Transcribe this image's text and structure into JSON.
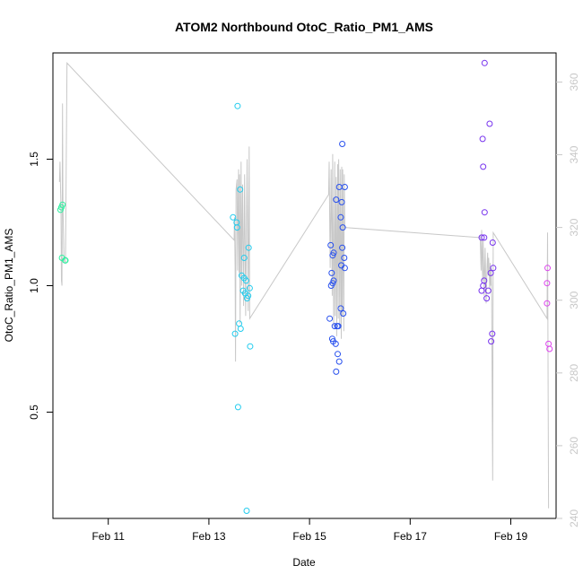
{
  "chart_data": {
    "type": "scatter",
    "title": "ATOM2 Northbound OtoC_Ratio_PM1_AMS",
    "xlabel": "Date",
    "ylabel": "OtoC_Ratio_PM1_AMS",
    "x_ticks": [
      "Feb 11",
      "Feb 13",
      "Feb 15",
      "Feb 17",
      "Feb 19"
    ],
    "x_tick_days": [
      11,
      13,
      15,
      17,
      19
    ],
    "xlim_days": [
      9.9,
      19.9
    ],
    "y_ticks": [
      0.5,
      1.0,
      1.5
    ],
    "ylim": [
      0.08,
      1.92
    ],
    "y2_ticks": [
      240,
      260,
      280,
      300,
      320,
      340,
      360
    ],
    "y2lim": [
      240,
      368
    ],
    "grid": false,
    "legend": "none",
    "line_color": "#c8c8c8",
    "point_series": [
      {
        "color": "#2ef0a0",
        "points": [
          [
            10.05,
            1.3
          ],
          [
            10.07,
            1.31
          ],
          [
            10.09,
            1.32
          ],
          [
            10.08,
            1.11
          ],
          [
            10.15,
            1.1
          ],
          [
            10.14,
            1.1
          ]
        ]
      },
      {
        "color": "#22ccee",
        "points": [
          [
            13.57,
            1.71
          ],
          [
            13.48,
            1.27
          ],
          [
            13.55,
            1.25
          ],
          [
            13.56,
            1.23
          ],
          [
            13.62,
            1.38
          ],
          [
            13.7,
            1.11
          ],
          [
            13.79,
            1.15
          ],
          [
            13.65,
            1.04
          ],
          [
            13.7,
            1.03
          ],
          [
            13.74,
            1.02
          ],
          [
            13.81,
            0.99
          ],
          [
            13.68,
            0.98
          ],
          [
            13.72,
            0.97
          ],
          [
            13.78,
            0.96
          ],
          [
            13.76,
            0.95
          ],
          [
            13.6,
            0.85
          ],
          [
            13.63,
            0.83
          ],
          [
            13.52,
            0.81
          ],
          [
            13.82,
            0.76
          ],
          [
            13.58,
            0.52
          ],
          [
            13.75,
            0.11
          ]
        ]
      },
      {
        "color": "#2850ee",
        "points": [
          [
            15.65,
            1.56
          ],
          [
            15.59,
            1.39
          ],
          [
            15.7,
            1.39
          ],
          [
            15.53,
            1.34
          ],
          [
            15.64,
            1.33
          ],
          [
            15.62,
            1.27
          ],
          [
            15.66,
            1.23
          ],
          [
            15.42,
            1.16
          ],
          [
            15.65,
            1.15
          ],
          [
            15.48,
            1.13
          ],
          [
            15.46,
            1.12
          ],
          [
            15.69,
            1.11
          ],
          [
            15.63,
            1.08
          ],
          [
            15.7,
            1.07
          ],
          [
            15.44,
            1.05
          ],
          [
            15.48,
            1.02
          ],
          [
            15.46,
            1.01
          ],
          [
            15.43,
            1.0
          ],
          [
            15.62,
            0.91
          ],
          [
            15.67,
            0.89
          ],
          [
            15.4,
            0.87
          ],
          [
            15.5,
            0.84
          ],
          [
            15.55,
            0.84
          ],
          [
            15.57,
            0.84
          ],
          [
            15.45,
            0.79
          ],
          [
            15.47,
            0.78
          ],
          [
            15.52,
            0.77
          ],
          [
            15.56,
            0.73
          ],
          [
            15.59,
            0.7
          ],
          [
            15.53,
            0.66
          ]
        ]
      },
      {
        "color": "#7733ee",
        "points": [
          [
            18.48,
            1.88
          ],
          [
            18.58,
            1.64
          ],
          [
            18.44,
            1.58
          ],
          [
            18.45,
            1.47
          ],
          [
            18.48,
            1.29
          ],
          [
            18.42,
            1.19
          ],
          [
            18.47,
            1.19
          ],
          [
            18.64,
            1.17
          ],
          [
            18.65,
            1.07
          ],
          [
            18.6,
            1.05
          ],
          [
            18.47,
            1.02
          ],
          [
            18.45,
            1.0
          ],
          [
            18.42,
            0.98
          ],
          [
            18.55,
            0.98
          ],
          [
            18.52,
            0.95
          ],
          [
            18.63,
            0.81
          ],
          [
            18.61,
            0.78
          ]
        ]
      },
      {
        "color": "#dd44ee",
        "points": [
          [
            19.73,
            1.07
          ],
          [
            19.72,
            1.01
          ],
          [
            19.72,
            0.93
          ],
          [
            19.75,
            0.77
          ],
          [
            19.77,
            0.75
          ]
        ]
      }
    ],
    "line_series": {
      "points": [
        [
          10.03,
          1.41
        ],
        [
          10.04,
          1.49
        ],
        [
          10.06,
          1.3
        ],
        [
          10.07,
          1.02
        ],
        [
          10.08,
          1.0
        ],
        [
          10.09,
          1.72
        ],
        [
          10.1,
          1.31
        ],
        [
          10.11,
          1.2
        ],
        [
          10.12,
          1.1
        ],
        [
          10.15,
          1.09
        ],
        [
          10.18,
          1.88
        ],
        [
          13.5,
          1.18
        ],
        [
          13.51,
          1.27
        ],
        [
          13.52,
          1.08
        ],
        [
          13.53,
          0.7
        ],
        [
          13.54,
          1.38
        ],
        [
          13.56,
          1.42
        ],
        [
          13.57,
          1.06
        ],
        [
          13.59,
          1.46
        ],
        [
          13.6,
          1.05
        ],
        [
          13.61,
          1.44
        ],
        [
          13.62,
          0.85
        ],
        [
          13.64,
          1.49
        ],
        [
          13.65,
          1.0
        ],
        [
          13.67,
          1.4
        ],
        [
          13.69,
          0.92
        ],
        [
          13.71,
          1.44
        ],
        [
          13.73,
          0.88
        ],
        [
          13.76,
          1.5
        ],
        [
          13.78,
          0.9
        ],
        [
          13.8,
          1.55
        ],
        [
          13.81,
          0.87
        ],
        [
          15.38,
          1.36
        ],
        [
          15.39,
          1.49
        ],
        [
          15.41,
          1.07
        ],
        [
          15.43,
          1.46
        ],
        [
          15.45,
          0.96
        ],
        [
          15.46,
          1.52
        ],
        [
          15.48,
          0.84
        ],
        [
          15.5,
          1.49
        ],
        [
          15.51,
          0.88
        ],
        [
          15.53,
          1.43
        ],
        [
          15.54,
          0.8
        ],
        [
          15.56,
          1.48
        ],
        [
          15.57,
          0.87
        ],
        [
          15.58,
          1.5
        ],
        [
          15.6,
          0.85
        ],
        [
          15.61,
          1.46
        ],
        [
          15.63,
          0.79
        ],
        [
          15.64,
          1.47
        ],
        [
          15.65,
          0.88
        ],
        [
          15.66,
          1.46
        ],
        [
          15.68,
          0.82
        ],
        [
          15.69,
          1.44
        ],
        [
          15.7,
          1.23
        ],
        [
          18.38,
          1.19
        ],
        [
          18.39,
          1.2
        ],
        [
          18.41,
          1.06
        ],
        [
          18.42,
          1.22
        ],
        [
          18.44,
          1.02
        ],
        [
          18.45,
          1.18
        ],
        [
          18.47,
          0.96
        ],
        [
          18.49,
          1.15
        ],
        [
          18.51,
          0.93
        ],
        [
          18.53,
          1.08
        ],
        [
          18.54,
          1.13
        ],
        [
          18.55,
          1.04
        ],
        [
          18.56,
          1.11
        ],
        [
          18.57,
          1.06
        ],
        [
          18.58,
          0.99
        ],
        [
          18.59,
          1.09
        ],
        [
          18.6,
          1.0
        ],
        [
          18.61,
          1.07
        ],
        [
          18.62,
          0.95
        ],
        [
          18.64,
          0.23
        ],
        [
          18.65,
          1.21
        ],
        [
          19.72,
          0.87
        ],
        [
          19.73,
          1.21
        ],
        [
          19.75,
          0.12
        ]
      ]
    }
  }
}
